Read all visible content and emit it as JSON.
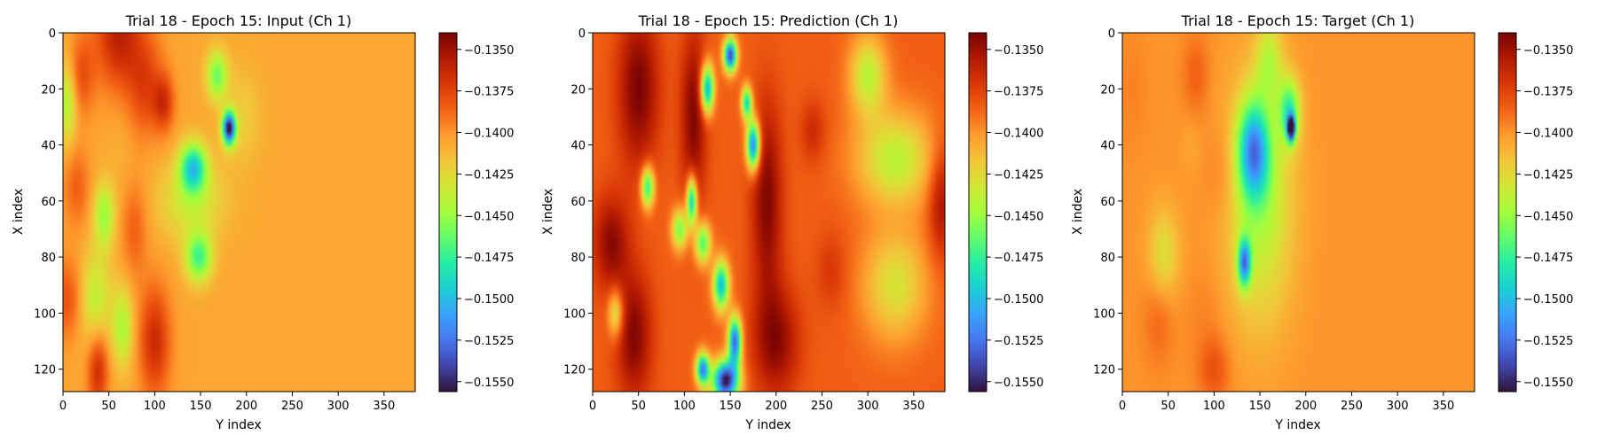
{
  "figure": {
    "colormap": "turbo",
    "colormap_stops": [
      "#30123b",
      "#4145ab",
      "#4675ed",
      "#39a2fc",
      "#1bcfd4",
      "#24eca6",
      "#61fc6c",
      "#a4fc3b",
      "#d1e834",
      "#f3c63a",
      "#fe9b2d",
      "#f36315",
      "#d93806",
      "#b11901",
      "#7a0403"
    ]
  },
  "chart_data": [
    {
      "type": "heatmap",
      "panel": "input",
      "title": "Trial 18 - Epoch 15: Input (Ch 1)",
      "xlabel": "Y index",
      "ylabel": "X index",
      "xlim": [
        0,
        384
      ],
      "ylim": [
        128,
        0
      ],
      "xticks": [
        0,
        50,
        100,
        150,
        200,
        250,
        300,
        350
      ],
      "yticks": [
        0,
        20,
        40,
        60,
        80,
        100,
        120
      ],
      "colorbar": {
        "vmin": -0.1556,
        "vmax": -0.134,
        "ticks": [
          -0.135,
          -0.1375,
          -0.14,
          -0.1425,
          -0.145,
          -0.1475,
          -0.15,
          -0.1525,
          -0.155
        ],
        "tick_labels": [
          "−0.1350",
          "−0.1375",
          "−0.1400",
          "−0.1425",
          "−0.1450",
          "−0.1475",
          "−0.1500",
          "−0.1525",
          "−0.1550"
        ]
      },
      "background_value": -0.1406,
      "features": [
        {
          "y": 0,
          "x": 60,
          "sy": 14,
          "sx": 18,
          "v": -0.136
        },
        {
          "y": 15,
          "x": 20,
          "sy": 10,
          "sx": 10,
          "v": -0.138
        },
        {
          "y": 55,
          "x": 15,
          "sy": 10,
          "sx": 10,
          "v": -0.1385
        },
        {
          "y": 95,
          "x": 5,
          "sy": 10,
          "sx": 12,
          "v": -0.138
        },
        {
          "y": 20,
          "x": 90,
          "sy": 14,
          "sx": 14,
          "v": -0.1375
        },
        {
          "y": 25,
          "x": 110,
          "sy": 7,
          "sx": 8,
          "v": -0.1372
        },
        {
          "y": 120,
          "x": 38,
          "sy": 10,
          "sx": 8,
          "v": -0.1365
        },
        {
          "y": 110,
          "x": 100,
          "sy": 14,
          "sx": 12,
          "v": -0.1365
        },
        {
          "y": 70,
          "x": 78,
          "sy": 12,
          "sx": 10,
          "v": -0.1385
        },
        {
          "y": 40,
          "x": 65,
          "sy": 12,
          "sx": 14,
          "v": -0.141
        },
        {
          "y": 35,
          "x": 95,
          "sy": 10,
          "sx": 10,
          "v": -0.141
        },
        {
          "y": 65,
          "x": 45,
          "sy": 8,
          "sx": 8,
          "v": -0.145
        },
        {
          "y": 25,
          "x": 5,
          "sy": 10,
          "sx": 7,
          "v": -0.1445
        },
        {
          "y": 95,
          "x": 35,
          "sy": 12,
          "sx": 12,
          "v": -0.144
        },
        {
          "y": 105,
          "x": 65,
          "sy": 10,
          "sx": 8,
          "v": -0.1445
        },
        {
          "y": 60,
          "x": 140,
          "sy": 10,
          "sx": 25,
          "v": -0.1435
        },
        {
          "y": 48,
          "x": 142,
          "sy": 6,
          "sx": 10,
          "v": -0.149
        },
        {
          "y": 15,
          "x": 168,
          "sy": 6,
          "sx": 8,
          "v": -0.146
        },
        {
          "y": 34,
          "x": 181,
          "sy": 4,
          "sx": 5,
          "v": -0.1555
        },
        {
          "y": 80,
          "x": 148,
          "sy": 6,
          "sx": 10,
          "v": -0.147
        },
        {
          "y": 30,
          "x": 195,
          "sy": 12,
          "sx": 15,
          "v": -0.142
        }
      ]
    },
    {
      "type": "heatmap",
      "panel": "prediction",
      "title": "Trial 18 - Epoch 15: Prediction (Ch 1)",
      "xlabel": "Y index",
      "ylabel": "X index",
      "xlim": [
        0,
        384
      ],
      "ylim": [
        128,
        0
      ],
      "xticks": [
        0,
        50,
        100,
        150,
        200,
        250,
        300,
        350
      ],
      "yticks": [
        0,
        20,
        40,
        60,
        80,
        100,
        120
      ],
      "colorbar": {
        "vmin": -0.1556,
        "vmax": -0.134,
        "ticks": [
          -0.135,
          -0.1375,
          -0.14,
          -0.1425,
          -0.145,
          -0.1475,
          -0.15,
          -0.1525,
          -0.155
        ],
        "tick_labels": [
          "−0.1350",
          "−0.1375",
          "−0.1400",
          "−0.1425",
          "−0.1450",
          "−0.1475",
          "−0.1500",
          "−0.1525",
          "−0.1550"
        ]
      },
      "background_value": -0.1385,
      "features": [
        {
          "y": 20,
          "x": 50,
          "sy": 20,
          "sx": 16,
          "v": -0.134
        },
        {
          "y": 75,
          "x": 20,
          "sy": 12,
          "sx": 14,
          "v": -0.1345
        },
        {
          "y": 108,
          "x": 45,
          "sy": 16,
          "sx": 14,
          "v": -0.1342
        },
        {
          "y": 30,
          "x": 110,
          "sy": 22,
          "sx": 10,
          "v": -0.1342
        },
        {
          "y": 60,
          "x": 190,
          "sy": 25,
          "sx": 12,
          "v": -0.1342
        },
        {
          "y": 110,
          "x": 200,
          "sy": 14,
          "sx": 18,
          "v": -0.1345
        },
        {
          "y": 60,
          "x": 380,
          "sy": 14,
          "sx": 10,
          "v": -0.135
        },
        {
          "y": 35,
          "x": 240,
          "sy": 8,
          "sx": 10,
          "v": -0.1365
        },
        {
          "y": 85,
          "x": 260,
          "sy": 10,
          "sx": 12,
          "v": -0.137
        },
        {
          "y": 45,
          "x": 330,
          "sy": 12,
          "sx": 30,
          "v": -0.144
        },
        {
          "y": 90,
          "x": 330,
          "sy": 14,
          "sx": 25,
          "v": -0.143
        },
        {
          "y": 15,
          "x": 300,
          "sy": 10,
          "sx": 14,
          "v": -0.144
        },
        {
          "y": 55,
          "x": 60,
          "sy": 5,
          "sx": 5,
          "v": -0.148
        },
        {
          "y": 20,
          "x": 125,
          "sy": 6,
          "sx": 5,
          "v": -0.151
        },
        {
          "y": 8,
          "x": 150,
          "sy": 4,
          "sx": 5,
          "v": -0.154
        },
        {
          "y": 40,
          "x": 175,
          "sy": 6,
          "sx": 5,
          "v": -0.153
        },
        {
          "y": 25,
          "x": 168,
          "sy": 4,
          "sx": 4,
          "v": -0.149
        },
        {
          "y": 60,
          "x": 108,
          "sy": 6,
          "sx": 4,
          "v": -0.15
        },
        {
          "y": 75,
          "x": 120,
          "sy": 5,
          "sx": 6,
          "v": -0.147
        },
        {
          "y": 90,
          "x": 140,
          "sy": 6,
          "sx": 6,
          "v": -0.15
        },
        {
          "y": 110,
          "x": 155,
          "sy": 6,
          "sx": 5,
          "v": -0.153
        },
        {
          "y": 124,
          "x": 145,
          "sy": 5,
          "sx": 10,
          "v": -0.1556
        },
        {
          "y": 120,
          "x": 120,
          "sy": 4,
          "sx": 5,
          "v": -0.152
        },
        {
          "y": 70,
          "x": 95,
          "sy": 5,
          "sx": 6,
          "v": -0.146
        },
        {
          "y": 100,
          "x": 25,
          "sy": 6,
          "sx": 6,
          "v": -0.144
        }
      ]
    },
    {
      "type": "heatmap",
      "panel": "target",
      "title": "Trial 18 - Epoch 15: Target (Ch 1)",
      "xlabel": "Y index",
      "ylabel": "X index",
      "xlim": [
        0,
        384
      ],
      "ylim": [
        128,
        0
      ],
      "xticks": [
        0,
        50,
        100,
        150,
        200,
        250,
        300,
        350
      ],
      "yticks": [
        0,
        20,
        40,
        60,
        80,
        100,
        120
      ],
      "colorbar": {
        "vmin": -0.1556,
        "vmax": -0.134,
        "ticks": [
          -0.135,
          -0.1375,
          -0.14,
          -0.1425,
          -0.145,
          -0.1475,
          -0.15,
          -0.1525,
          -0.155
        ],
        "tick_labels": [
          "−0.1350",
          "−0.1375",
          "−0.1400",
          "−0.1425",
          "−0.1450",
          "−0.1475",
          "−0.1500",
          "−0.1525",
          "−0.1550"
        ]
      },
      "background_value": -0.14,
      "features": [
        {
          "y": 20,
          "x": 10,
          "sy": 14,
          "sx": 12,
          "v": -0.1395
        },
        {
          "y": 60,
          "x": 15,
          "sy": 12,
          "sx": 10,
          "v": -0.14
        },
        {
          "y": 100,
          "x": 40,
          "sy": 12,
          "sx": 12,
          "v": -0.1385
        },
        {
          "y": 50,
          "x": 110,
          "sy": 12,
          "sx": 14,
          "v": -0.139
        },
        {
          "y": 100,
          "x": 90,
          "sy": 12,
          "sx": 14,
          "v": -0.1395
        },
        {
          "y": 15,
          "x": 80,
          "sy": 10,
          "sx": 10,
          "v": -0.1385
        },
        {
          "y": 40,
          "x": 75,
          "sy": 8,
          "sx": 8,
          "v": -0.1405
        },
        {
          "y": 80,
          "x": 45,
          "sy": 12,
          "sx": 12,
          "v": -0.143
        },
        {
          "y": 120,
          "x": 100,
          "sy": 8,
          "sx": 12,
          "v": -0.138
        },
        {
          "y": 60,
          "x": 150,
          "sy": 30,
          "sx": 25,
          "v": -0.1445
        },
        {
          "y": 42,
          "x": 143,
          "sy": 12,
          "sx": 12,
          "v": -0.1495
        },
        {
          "y": 34,
          "x": 184,
          "sy": 3,
          "sx": 3,
          "v": -0.1556
        },
        {
          "y": 28,
          "x": 182,
          "sy": 8,
          "sx": 8,
          "v": -0.147
        },
        {
          "y": 82,
          "x": 133,
          "sy": 6,
          "sx": 5,
          "v": -0.1505
        },
        {
          "y": 10,
          "x": 160,
          "sy": 10,
          "sx": 10,
          "v": -0.1435
        }
      ]
    }
  ]
}
